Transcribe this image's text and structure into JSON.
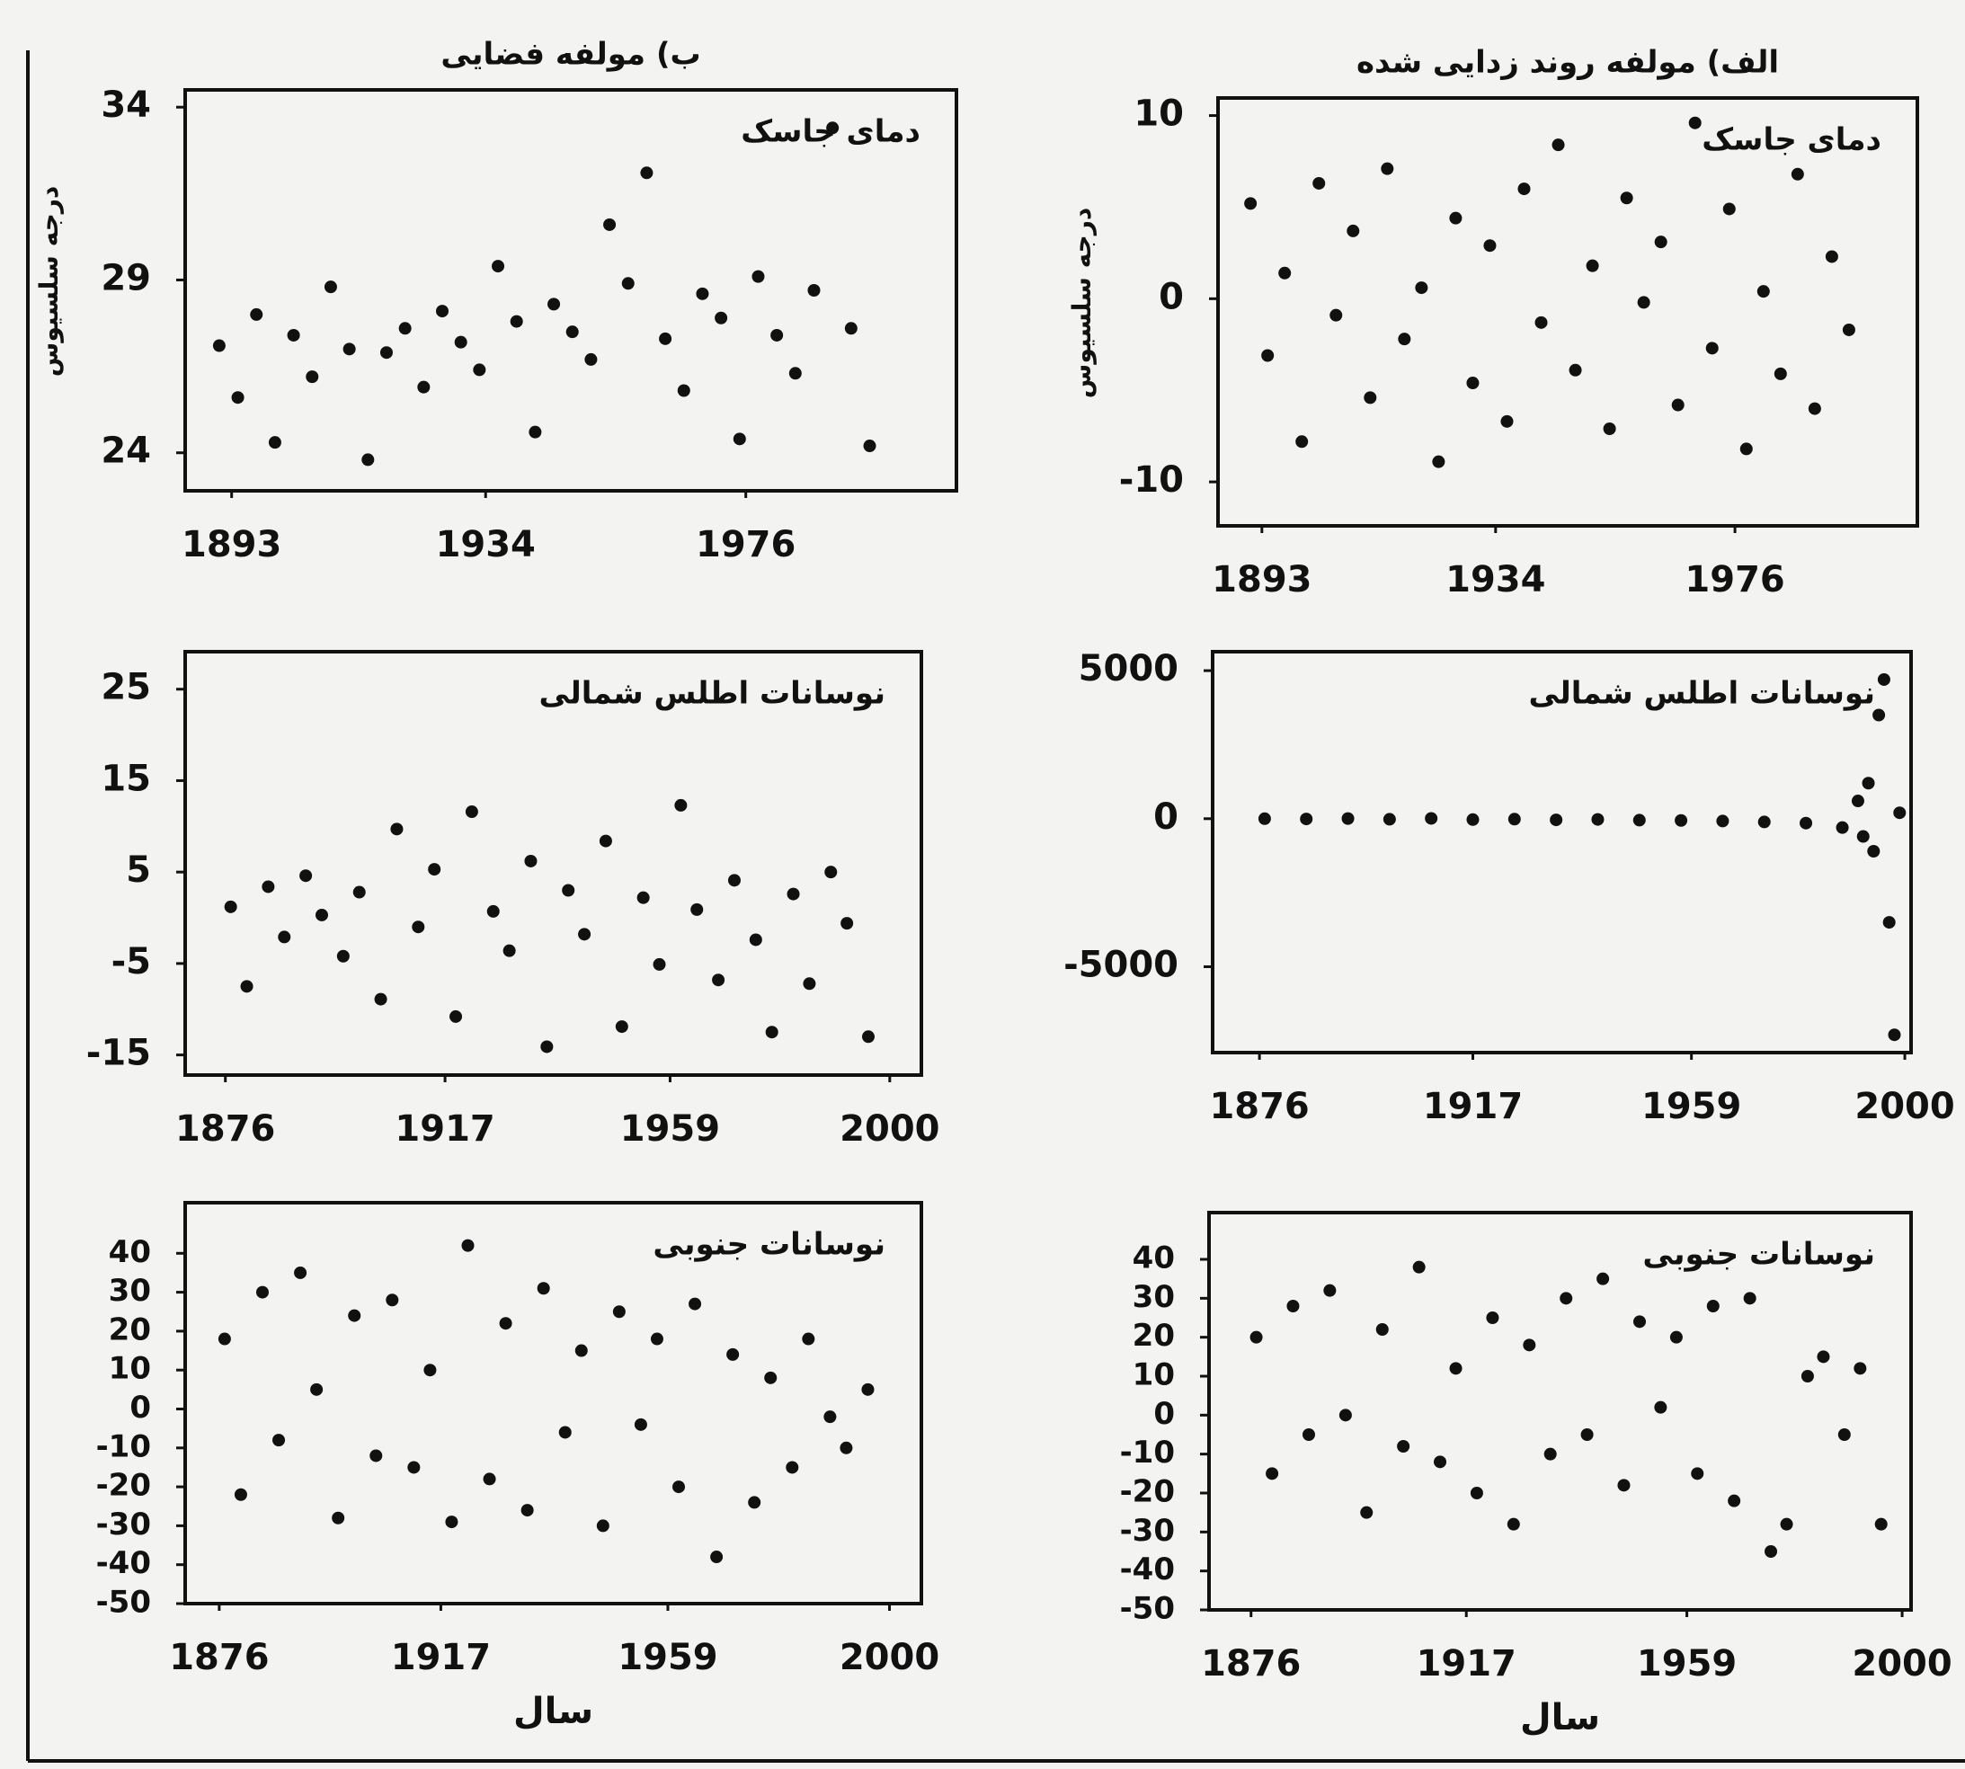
{
  "chart_data": [
    {
      "type": "scatter",
      "title": "ب) مولفه فضایی",
      "annotation": "دمای جاسک",
      "ylabel": "درجه سلسیوس",
      "x": [
        1891,
        1894,
        1897,
        1900,
        1903,
        1906,
        1909,
        1912,
        1915,
        1918,
        1921,
        1924,
        1927,
        1930,
        1933,
        1936,
        1939,
        1942,
        1945,
        1948,
        1951,
        1954,
        1957,
        1960,
        1963,
        1966,
        1969,
        1972,
        1975,
        1978,
        1981,
        1984,
        1987,
        1990,
        1993,
        1996
      ],
      "values": [
        27.1,
        25.6,
        28.0,
        24.3,
        27.4,
        26.2,
        28.8,
        27.0,
        23.8,
        26.9,
        27.6,
        25.9,
        28.1,
        27.2,
        26.4,
        29.4,
        27.8,
        24.6,
        28.3,
        27.5,
        26.7,
        30.6,
        28.9,
        32.1,
        27.3,
        25.8,
        28.6,
        27.9,
        24.4,
        29.1,
        27.4,
        26.3,
        28.7,
        33.4,
        27.6,
        24.2
      ],
      "color": "#111111",
      "xlim": [
        1885.5,
        2010
      ],
      "ylim": [
        22.9,
        34.5
      ],
      "xticks": [
        1893,
        1934,
        1976
      ],
      "yticks": [
        24,
        29,
        34
      ]
    },
    {
      "type": "scatter",
      "title": "الف) مولفه روند زدایی شده",
      "annotation": "دمای جاسک",
      "ylabel": "درجه سلسیوس",
      "x": [
        1891,
        1894,
        1897,
        1900,
        1903,
        1906,
        1909,
        1912,
        1915,
        1918,
        1921,
        1924,
        1927,
        1930,
        1933,
        1936,
        1939,
        1942,
        1945,
        1948,
        1951,
        1954,
        1957,
        1960,
        1963,
        1966,
        1969,
        1972,
        1975,
        1978,
        1981,
        1984,
        1987,
        1990,
        1993,
        1996
      ],
      "values": [
        5.2,
        -3.1,
        1.4,
        -7.8,
        6.3,
        -0.9,
        3.7,
        -5.4,
        7.1,
        -2.2,
        0.6,
        -8.9,
        4.4,
        -4.6,
        2.9,
        -6.7,
        6.0,
        -1.3,
        8.4,
        -3.9,
        1.8,
        -7.1,
        5.5,
        -0.2,
        3.1,
        -5.8,
        9.6,
        -2.7,
        4.9,
        -8.2,
        0.4,
        -4.1,
        6.8,
        -6.0,
        2.3,
        -1.7
      ],
      "color": "#111111",
      "xlim": [
        1885.3,
        2008
      ],
      "ylim": [
        -12.4,
        10.96
      ],
      "xticks": [
        1893,
        1934,
        1976
      ],
      "yticks": [
        -10,
        0,
        10
      ]
    },
    {
      "type": "scatter",
      "annotation": "نوسانات اطلس شمالی",
      "x": [
        1877,
        1880,
        1884,
        1887,
        1891,
        1894,
        1898,
        1901,
        1905,
        1908,
        1912,
        1915,
        1919,
        1922,
        1926,
        1929,
        1933,
        1936,
        1940,
        1943,
        1947,
        1950,
        1954,
        1957,
        1961,
        1964,
        1968,
        1971,
        1975,
        1978,
        1982,
        1985,
        1989,
        1992,
        1996
      ],
      "values": [
        1.2,
        -7.5,
        3.4,
        -2.1,
        4.6,
        0.3,
        -4.2,
        2.8,
        -8.9,
        9.7,
        -1.0,
        5.3,
        -10.8,
        11.6,
        0.7,
        -3.6,
        6.2,
        -14.1,
        3.0,
        -1.8,
        8.4,
        -11.9,
        2.2,
        -5.1,
        12.3,
        0.9,
        -6.8,
        4.1,
        -2.4,
        -12.5,
        2.6,
        -7.2,
        5.0,
        -0.6,
        -13.0
      ],
      "color": "#111111",
      "xlim": [
        1868.5,
        2005.9
      ],
      "ylim": [
        -17.2,
        29.1
      ],
      "xticks": [
        1876,
        1917,
        1959,
        2000
      ],
      "yticks": [
        -15,
        -5,
        5,
        15,
        25
      ]
    },
    {
      "type": "scatter",
      "annotation": "نوسانات اطلس شمالی",
      "x": [
        1877,
        1885,
        1893,
        1901,
        1909,
        1917,
        1925,
        1933,
        1941,
        1949,
        1957,
        1965,
        1973,
        1981,
        1988,
        1991,
        1992,
        1993,
        1994,
        1995,
        1996,
        1997,
        1998,
        1999
      ],
      "values": [
        0,
        -10,
        5,
        -20,
        10,
        -30,
        -15,
        -40,
        -25,
        -50,
        -60,
        -80,
        -110,
        -150,
        -300,
        600,
        -600,
        1200,
        -1100,
        3500,
        4700,
        -3500,
        -7300,
        200
      ],
      "color": "#111111",
      "xlim": [
        1867,
        2001.2
      ],
      "ylim": [
        -7900,
        5640
      ],
      "xticks": [
        1876,
        1917,
        1959,
        2000
      ],
      "yticks": [
        -5000,
        0,
        5000
      ]
    },
    {
      "type": "scatter",
      "annotation": "نوسانات جنوبی",
      "xlabel": "سال",
      "x": [
        1877,
        1880,
        1884,
        1887,
        1891,
        1894,
        1898,
        1901,
        1905,
        1908,
        1912,
        1915,
        1919,
        1922,
        1926,
        1929,
        1933,
        1936,
        1940,
        1943,
        1947,
        1950,
        1954,
        1957,
        1961,
        1964,
        1968,
        1971,
        1975,
        1978,
        1982,
        1985,
        1989,
        1992,
        1996
      ],
      "values": [
        18,
        -22,
        30,
        -8,
        35,
        5,
        -28,
        24,
        -12,
        28,
        -15,
        10,
        -29,
        42,
        -18,
        22,
        -26,
        31,
        -6,
        15,
        -30,
        25,
        -4,
        18,
        -20,
        27,
        -38,
        14,
        -24,
        8,
        -15,
        18,
        -2,
        -10,
        5
      ],
      "color": "#111111",
      "xlim": [
        1869.7,
        2005.9
      ],
      "ylim": [
        -50,
        53
      ],
      "xticks": [
        1876,
        1917,
        1959,
        2000
      ],
      "yticks": [
        -50,
        -40,
        -30,
        -20,
        -10,
        0,
        10,
        20,
        30,
        40
      ]
    },
    {
      "type": "scatter",
      "annotation": "نوسانات جنوبی",
      "xlabel": "سال",
      "x": [
        1877,
        1880,
        1884,
        1887,
        1891,
        1894,
        1898,
        1901,
        1905,
        1908,
        1912,
        1915,
        1919,
        1922,
        1926,
        1929,
        1933,
        1936,
        1940,
        1943,
        1947,
        1950,
        1954,
        1957,
        1961,
        1964,
        1968,
        1971,
        1975,
        1978,
        1982,
        1985,
        1989,
        1992,
        1996
      ],
      "values": [
        20,
        -15,
        28,
        -5,
        32,
        0,
        -25,
        22,
        -8,
        38,
        -12,
        12,
        -20,
        25,
        -28,
        18,
        -10,
        30,
        -5,
        35,
        -18,
        24,
        2,
        20,
        -15,
        28,
        -22,
        30,
        -35,
        -28,
        10,
        15,
        -5,
        12,
        -28
      ],
      "color": "#111111",
      "xlim": [
        1868,
        2001.7
      ],
      "ylim": [
        -50,
        52
      ],
      "xticks": [
        1876,
        1917,
        1959,
        2000
      ],
      "yticks": [
        -50,
        -40,
        -30,
        -20,
        -10,
        0,
        10,
        20,
        30,
        40
      ]
    }
  ]
}
